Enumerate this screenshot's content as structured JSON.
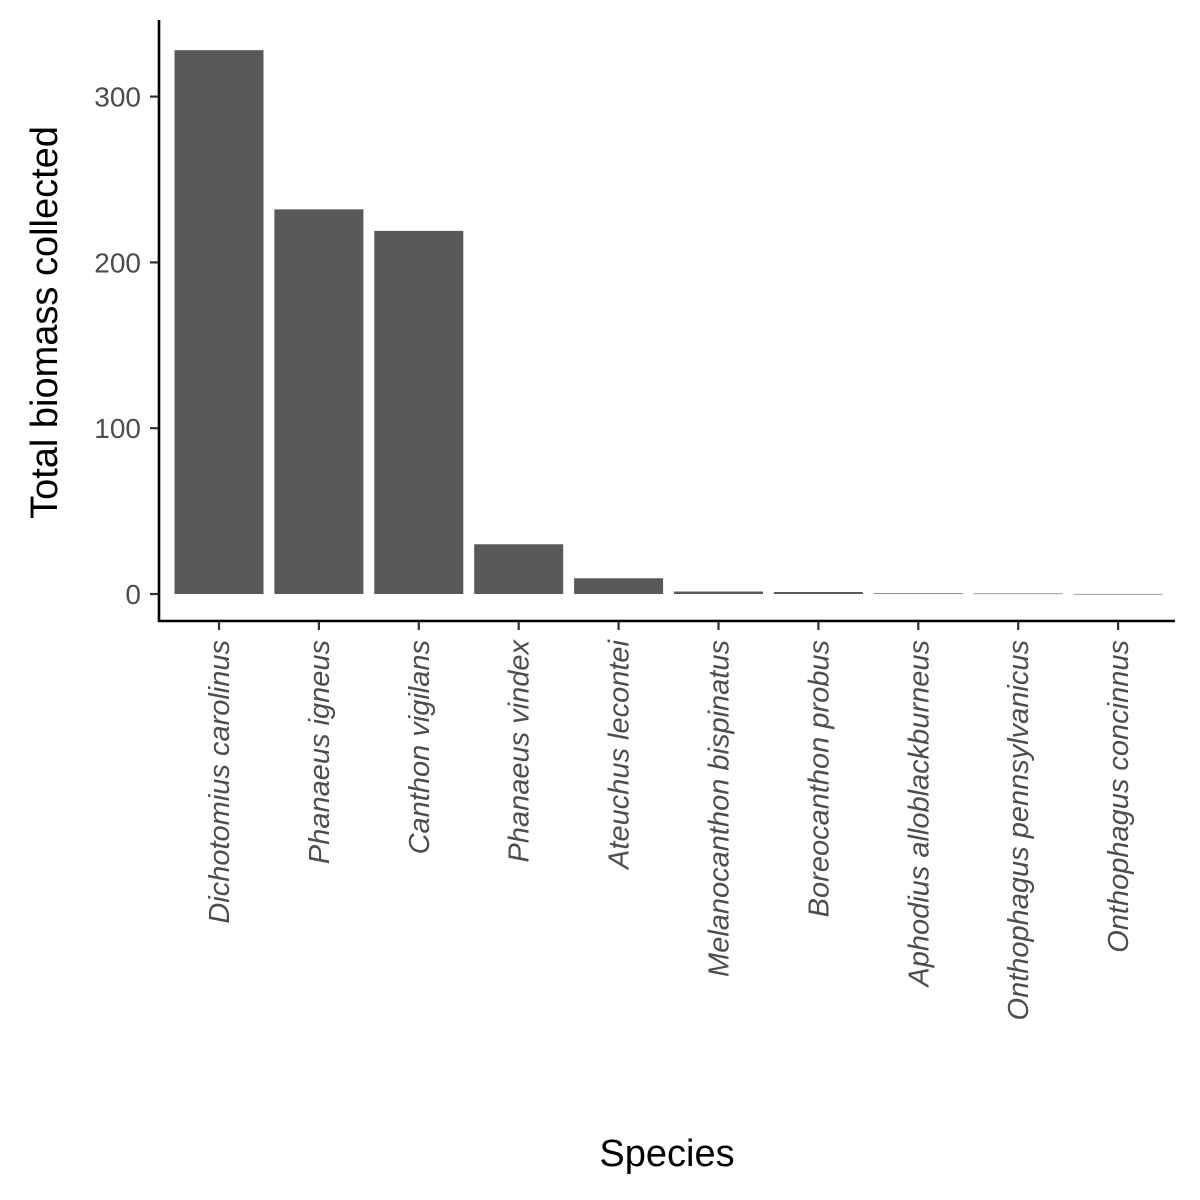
{
  "chart_data": {
    "type": "bar",
    "title": "",
    "xlabel": "Species",
    "ylabel": "Total biomass collected",
    "categories": [
      "Dichotomius carolinus",
      "Phanaeus igneus",
      "Canthon vigilans",
      "Phanaeus vindex",
      "Ateuchus lecontei",
      "Melanocanthon bispinatus",
      "Boreocanthon probus",
      "Aphodius alloblackburneus",
      "Onthophagus pennsylvanicus",
      "Onthophagus concinnus"
    ],
    "values": [
      328,
      232,
      219,
      30,
      9.5,
      1.5,
      1.2,
      0.4,
      0.3,
      0.05
    ],
    "ylim": [
      -16,
      345
    ],
    "yticks": [
      0,
      100,
      200,
      300
    ],
    "grid": false,
    "legend": "none",
    "bar_color": "#595959",
    "axis_color": "#000000"
  }
}
